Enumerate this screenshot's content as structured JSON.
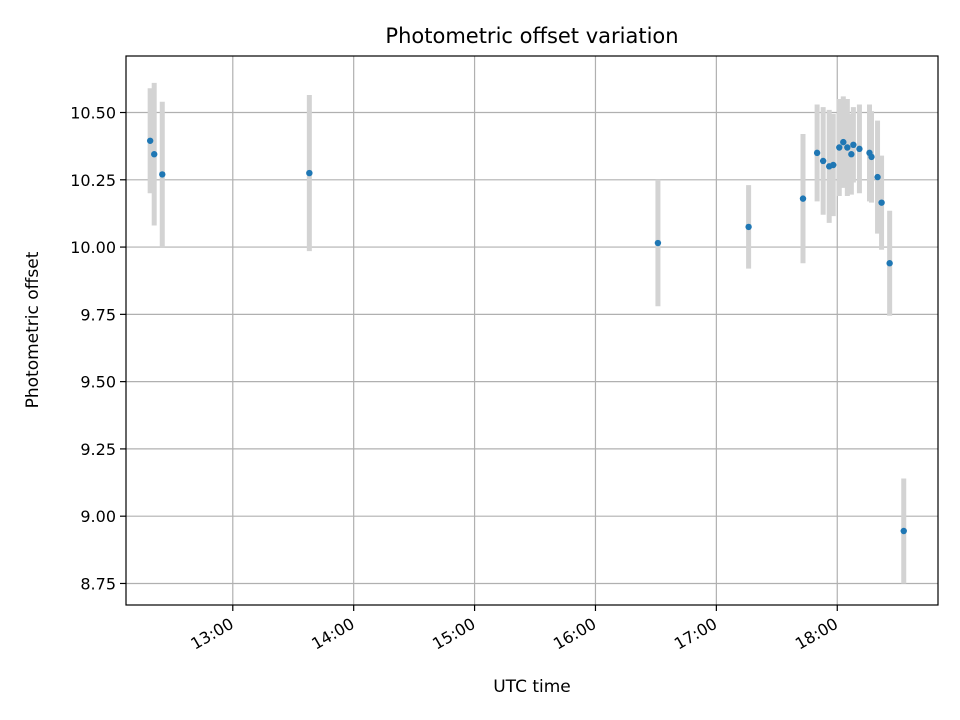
{
  "chart_data": {
    "type": "scatter",
    "title": "Photometric offset variation",
    "xlabel": "UTC time",
    "ylabel": "Photometric offset",
    "x_axis": "time",
    "xlim": [
      "12:07",
      "18:50"
    ],
    "ylim": [
      8.67,
      10.71
    ],
    "grid": true,
    "x_ticks": [
      "13:00",
      "14:00",
      "15:00",
      "16:00",
      "17:00",
      "18:00"
    ],
    "y_ticks": [
      8.75,
      9.0,
      9.25,
      9.5,
      9.75,
      10.0,
      10.25,
      10.5
    ],
    "y_tick_labels": [
      "8.75",
      "9.00",
      "9.25",
      "9.50",
      "9.75",
      "10.00",
      "10.25",
      "10.50"
    ],
    "marker_color": "#1f77b4",
    "errorbar_color": "#d3d3d3",
    "points": [
      {
        "x": "12:19",
        "y": 10.395,
        "yerr": 0.195
      },
      {
        "x": "12:21",
        "y": 10.345,
        "yerr": 0.265
      },
      {
        "x": "12:25",
        "y": 10.27,
        "yerr": 0.27
      },
      {
        "x": "13:38",
        "y": 10.275,
        "yerr": 0.29
      },
      {
        "x": "16:31",
        "y": 10.015,
        "yerr": 0.235
      },
      {
        "x": "17:16",
        "y": 10.075,
        "yerr": 0.155
      },
      {
        "x": "17:43",
        "y": 10.18,
        "yerr": 0.24
      },
      {
        "x": "17:50",
        "y": 10.35,
        "yerr": 0.18
      },
      {
        "x": "17:53",
        "y": 10.32,
        "yerr": 0.2
      },
      {
        "x": "17:56",
        "y": 10.3,
        "yerr": 0.21
      },
      {
        "x": "17:58",
        "y": 10.305,
        "yerr": 0.19
      },
      {
        "x": "18:01",
        "y": 10.37,
        "yerr": 0.18
      },
      {
        "x": "18:03",
        "y": 10.39,
        "yerr": 0.17
      },
      {
        "x": "18:05",
        "y": 10.37,
        "yerr": 0.18
      },
      {
        "x": "18:07",
        "y": 10.345,
        "yerr": 0.15
      },
      {
        "x": "18:08",
        "y": 10.38,
        "yerr": 0.14
      },
      {
        "x": "18:11",
        "y": 10.365,
        "yerr": 0.165
      },
      {
        "x": "18:16",
        "y": 10.35,
        "yerr": 0.18
      },
      {
        "x": "18:17",
        "y": 10.335,
        "yerr": 0.17
      },
      {
        "x": "18:20",
        "y": 10.26,
        "yerr": 0.21
      },
      {
        "x": "18:22",
        "y": 10.165,
        "yerr": 0.175
      },
      {
        "x": "18:26",
        "y": 9.94,
        "yerr": 0.195
      },
      {
        "x": "18:33",
        "y": 8.945,
        "yerr": 0.195
      }
    ]
  }
}
